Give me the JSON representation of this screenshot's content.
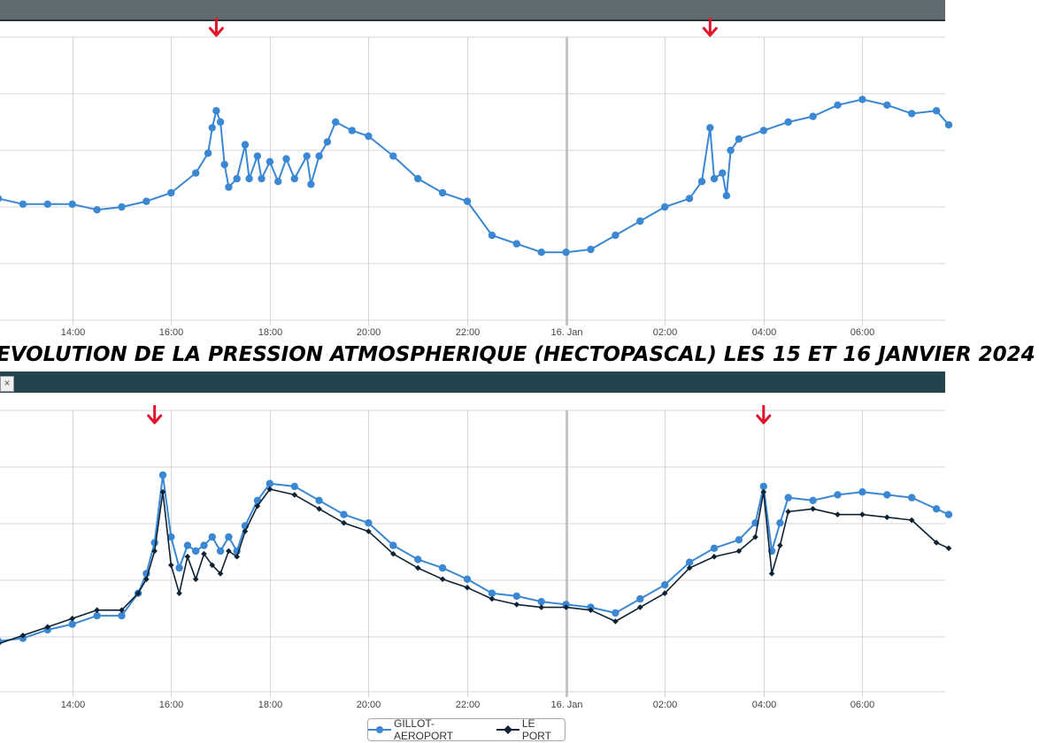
{
  "title": "EVOLUTION DE LA PRESSION ATMOSPHERIQUE (HECTOPASCAL) LES 15 ET 16 JANVIER 2024",
  "colors": {
    "gillot": "#3a87d4",
    "leport": "#0e2233",
    "arrow": "#e0152d",
    "grid": "#d6d6d6",
    "midnight": "#c4c4c4"
  },
  "legend": [
    {
      "name": "GILLOT-AEROPORT",
      "icon": "circle-marker"
    },
    {
      "name": "LE PORT",
      "icon": "diamond-marker"
    }
  ],
  "close_label": "×",
  "chart_data": [
    {
      "type": "line",
      "x_ticks": [
        "14:00",
        "16:00",
        "18:00",
        "20:00",
        "22:00",
        "16. Jan",
        "02:00",
        "04:00",
        "06:00"
      ],
      "xlim": [
        "2024-01-15 12:30",
        "2024-01-16 07:45"
      ],
      "ylim": [
        0,
        100
      ],
      "grid": true,
      "series": [
        {
          "name": "GILLOT-AEROPORT",
          "x": [
            "2024-01-15 12:30",
            "2024-01-15 13:00",
            "2024-01-15 13:30",
            "2024-01-15 14:00",
            "2024-01-15 14:30",
            "2024-01-15 15:00",
            "2024-01-15 15:30",
            "2024-01-15 16:00",
            "2024-01-15 16:30",
            "2024-01-15 16:45",
            "2024-01-15 16:50",
            "2024-01-15 16:55",
            "2024-01-15 17:00",
            "2024-01-15 17:05",
            "2024-01-15 17:10",
            "2024-01-15 17:20",
            "2024-01-15 17:30",
            "2024-01-15 17:35",
            "2024-01-15 17:45",
            "2024-01-15 17:50",
            "2024-01-15 18:00",
            "2024-01-15 18:10",
            "2024-01-15 18:20",
            "2024-01-15 18:30",
            "2024-01-15 18:45",
            "2024-01-15 18:50",
            "2024-01-15 19:00",
            "2024-01-15 19:10",
            "2024-01-15 19:20",
            "2024-01-15 19:40",
            "2024-01-15 20:00",
            "2024-01-15 20:30",
            "2024-01-15 21:00",
            "2024-01-15 21:30",
            "2024-01-15 22:00",
            "2024-01-15 22:30",
            "2024-01-15 23:00",
            "2024-01-15 23:30",
            "2024-01-16 00:00",
            "2024-01-16 00:30",
            "2024-01-16 01:00",
            "2024-01-16 01:30",
            "2024-01-16 02:00",
            "2024-01-16 02:30",
            "2024-01-16 02:45",
            "2024-01-16 02:55",
            "2024-01-16 03:00",
            "2024-01-16 03:10",
            "2024-01-16 03:15",
            "2024-01-16 03:20",
            "2024-01-16 03:30",
            "2024-01-16 04:00",
            "2024-01-16 04:30",
            "2024-01-16 05:00",
            "2024-01-16 05:30",
            "2024-01-16 06:00",
            "2024-01-16 06:30",
            "2024-01-16 07:00",
            "2024-01-16 07:30",
            "2024-01-16 07:45"
          ],
          "y": [
            43,
            41,
            41,
            41,
            39,
            40,
            42,
            45,
            52,
            59,
            68,
            74,
            70,
            55,
            47,
            50,
            62,
            50,
            58,
            50,
            56,
            49,
            57,
            50,
            58,
            48,
            58,
            63,
            70,
            67,
            65,
            58,
            50,
            45,
            42,
            30,
            27,
            24,
            24,
            25,
            30,
            35,
            40,
            43,
            49,
            68,
            50,
            52,
            44,
            60,
            64,
            67,
            70,
            72,
            76,
            78,
            76,
            73,
            74,
            69
          ]
        }
      ],
      "annotations": [
        {
          "type": "arrow-down",
          "x": "2024-01-15 16:55"
        },
        {
          "type": "arrow-down",
          "x": "2024-01-16 02:55"
        }
      ]
    },
    {
      "type": "line",
      "x_ticks": [
        "14:00",
        "16:00",
        "18:00",
        "20:00",
        "22:00",
        "16. Jan",
        "02:00",
        "04:00",
        "06:00"
      ],
      "xlim": [
        "2024-01-15 12:30",
        "2024-01-16 07:45"
      ],
      "ylim": [
        0,
        100
      ],
      "grid": true,
      "series": [
        {
          "name": "GILLOT-AEROPORT",
          "x": [
            "2024-01-15 12:30",
            "2024-01-15 13:00",
            "2024-01-15 13:30",
            "2024-01-15 14:00",
            "2024-01-15 14:30",
            "2024-01-15 15:00",
            "2024-01-15 15:20",
            "2024-01-15 15:30",
            "2024-01-15 15:40",
            "2024-01-15 15:50",
            "2024-01-15 16:00",
            "2024-01-15 16:10",
            "2024-01-15 16:20",
            "2024-01-15 16:30",
            "2024-01-15 16:40",
            "2024-01-15 16:50",
            "2024-01-15 17:00",
            "2024-01-15 17:10",
            "2024-01-15 17:20",
            "2024-01-15 17:30",
            "2024-01-15 17:45",
            "2024-01-15 18:00",
            "2024-01-15 18:30",
            "2024-01-15 19:00",
            "2024-01-15 19:30",
            "2024-01-15 20:00",
            "2024-01-15 20:30",
            "2024-01-15 21:00",
            "2024-01-15 21:30",
            "2024-01-15 22:00",
            "2024-01-15 22:30",
            "2024-01-15 23:00",
            "2024-01-15 23:30",
            "2024-01-16 00:00",
            "2024-01-16 00:30",
            "2024-01-16 01:00",
            "2024-01-16 01:30",
            "2024-01-16 02:00",
            "2024-01-16 02:30",
            "2024-01-16 03:00",
            "2024-01-16 03:30",
            "2024-01-16 03:50",
            "2024-01-16 04:00",
            "2024-01-16 04:10",
            "2024-01-16 04:20",
            "2024-01-16 04:30",
            "2024-01-16 05:00",
            "2024-01-16 05:30",
            "2024-01-16 06:00",
            "2024-01-16 06:30",
            "2024-01-16 07:00",
            "2024-01-16 07:30",
            "2024-01-16 07:45"
          ],
          "y": [
            18,
            19,
            22,
            24,
            27,
            27,
            35,
            42,
            53,
            77,
            55,
            44,
            52,
            50,
            52,
            55,
            50,
            55,
            50,
            59,
            68,
            74,
            73,
            68,
            63,
            60,
            52,
            47,
            44,
            40,
            35,
            34,
            32,
            31,
            30,
            28,
            33,
            38,
            46,
            51,
            54,
            60,
            73,
            50,
            60,
            69,
            68,
            70,
            71,
            70,
            69,
            65,
            63
          ]
        },
        {
          "name": "LE PORT",
          "x": [
            "2024-01-15 12:30",
            "2024-01-15 13:00",
            "2024-01-15 13:30",
            "2024-01-15 14:00",
            "2024-01-15 14:30",
            "2024-01-15 15:00",
            "2024-01-15 15:20",
            "2024-01-15 15:30",
            "2024-01-15 15:40",
            "2024-01-15 15:50",
            "2024-01-15 16:00",
            "2024-01-15 16:10",
            "2024-01-15 16:20",
            "2024-01-15 16:30",
            "2024-01-15 16:40",
            "2024-01-15 16:50",
            "2024-01-15 17:00",
            "2024-01-15 17:10",
            "2024-01-15 17:20",
            "2024-01-15 17:30",
            "2024-01-15 17:45",
            "2024-01-15 18:00",
            "2024-01-15 18:30",
            "2024-01-15 19:00",
            "2024-01-15 19:30",
            "2024-01-15 20:00",
            "2024-01-15 20:30",
            "2024-01-15 21:00",
            "2024-01-15 21:30",
            "2024-01-15 22:00",
            "2024-01-15 22:30",
            "2024-01-15 23:00",
            "2024-01-15 23:30",
            "2024-01-16 00:00",
            "2024-01-16 00:30",
            "2024-01-16 01:00",
            "2024-01-16 01:30",
            "2024-01-16 02:00",
            "2024-01-16 02:30",
            "2024-01-16 03:00",
            "2024-01-16 03:30",
            "2024-01-16 03:50",
            "2024-01-16 04:00",
            "2024-01-16 04:10",
            "2024-01-16 04:20",
            "2024-01-16 04:30",
            "2024-01-16 05:00",
            "2024-01-16 05:30",
            "2024-01-16 06:00",
            "2024-01-16 06:30",
            "2024-01-16 07:00",
            "2024-01-16 07:30",
            "2024-01-16 07:45"
          ],
          "y": [
            17,
            20,
            23,
            26,
            29,
            29,
            35,
            40,
            50,
            71,
            45,
            35,
            48,
            40,
            49,
            45,
            42,
            50,
            48,
            57,
            66,
            72,
            70,
            65,
            60,
            57,
            49,
            44,
            40,
            37,
            33,
            31,
            30,
            30,
            29,
            25,
            30,
            35,
            44,
            48,
            50,
            55,
            71,
            42,
            52,
            64,
            65,
            63,
            63,
            62,
            61,
            53,
            51
          ]
        }
      ],
      "annotations": [
        {
          "type": "arrow-down",
          "x": "2024-01-15 15:40"
        },
        {
          "type": "arrow-down",
          "x": "2024-01-16 04:00"
        }
      ]
    }
  ]
}
